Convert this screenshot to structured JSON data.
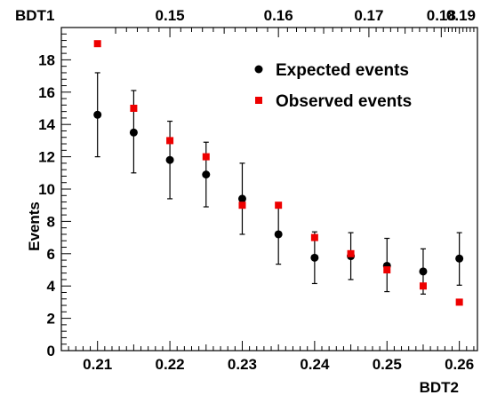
{
  "chart_data": {
    "type": "scatter",
    "xlabel": "BDT2",
    "ylabel": "Events",
    "top_axis_label": "BDT1",
    "xlim": [
      0.205,
      0.2625
    ],
    "ylim": [
      0,
      20
    ],
    "x_ticks": [
      "0.21",
      "0.22",
      "0.23",
      "0.24",
      "0.25",
      "0.26"
    ],
    "x_tick_values": [
      0.21,
      0.22,
      0.23,
      0.24,
      0.25,
      0.26
    ],
    "y_ticks": [
      "0",
      "2",
      "4",
      "6",
      "8",
      "10",
      "12",
      "14",
      "16",
      "18"
    ],
    "y_tick_values": [
      0,
      2,
      4,
      6,
      8,
      10,
      12,
      14,
      16,
      18
    ],
    "top_ticks": [
      "0.15",
      "0.16",
      "0.17",
      "0.18",
      "0.19"
    ],
    "top_tick_positions_bdt2": [
      0.22,
      0.235,
      0.2475,
      0.2575,
      0.2625
    ],
    "grid": false,
    "legend_position": "top-right",
    "series": [
      {
        "name": "Expected events",
        "marker": "circle",
        "color": "#000000",
        "x": [
          0.21,
          0.215,
          0.22,
          0.225,
          0.23,
          0.235,
          0.24,
          0.245,
          0.25,
          0.255,
          0.26
        ],
        "y": [
          14.6,
          13.5,
          11.8,
          10.9,
          9.4,
          7.2,
          5.75,
          5.85,
          5.25,
          4.9,
          5.7
        ],
        "err_low": [
          2.6,
          2.5,
          2.4,
          2.0,
          2.2,
          1.85,
          1.6,
          1.45,
          1.6,
          1.4,
          1.65
        ],
        "err_high": [
          2.6,
          2.6,
          2.4,
          2.0,
          2.2,
          1.85,
          1.6,
          1.45,
          1.7,
          1.4,
          1.6
        ]
      },
      {
        "name": "Observed events",
        "marker": "square",
        "color": "#ee0000",
        "x": [
          0.21,
          0.215,
          0.22,
          0.225,
          0.23,
          0.235,
          0.24,
          0.245,
          0.25,
          0.255,
          0.26
        ],
        "y": [
          19,
          15,
          13,
          12,
          9,
          9,
          7,
          6,
          5,
          4,
          3
        ]
      }
    ]
  }
}
